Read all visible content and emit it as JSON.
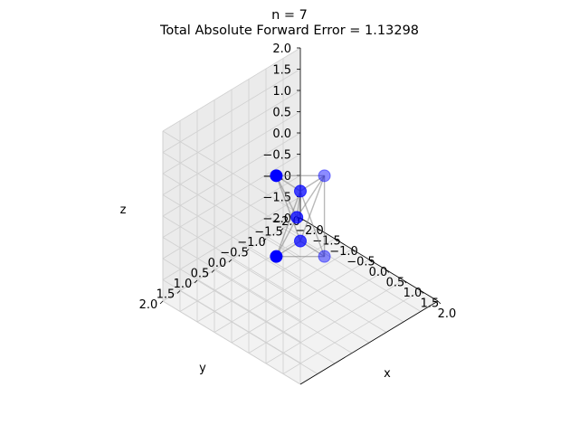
{
  "chart_data": {
    "type": "scatter3d",
    "title": "n = 7",
    "subtitle": "Total Absolute Forward Error = 1.13298",
    "xlabel": "x",
    "ylabel": "y",
    "zlabel": "z",
    "xlim": [
      -2.0,
      2.0
    ],
    "ylim": [
      -2.0,
      2.0
    ],
    "zlim": [
      -2.0,
      2.0
    ],
    "x_ticks": [
      "−2.0",
      "−1.5",
      "−1.0",
      "−0.5",
      "0.0",
      "0.5",
      "1.0",
      "1.5",
      "2.0"
    ],
    "y_ticks": [
      "−2.0",
      "−1.5",
      "−1.0",
      "−0.5",
      "0.0",
      "0.5",
      "1.0",
      "1.5",
      "2.0"
    ],
    "z_ticks": [
      "−2.0",
      "−1.5",
      "−1.0",
      "−0.5",
      "0.0",
      "0.5",
      "1.0",
      "1.5",
      "2.0"
    ],
    "grid": true,
    "point_color": "#0000ff",
    "edge_color": "#808080",
    "points": [
      {
        "x": -0.35,
        "y": 0.35,
        "z": 0.95
      },
      {
        "x": 0.35,
        "y": -0.35,
        "z": 0.95
      },
      {
        "x": -0.05,
        "y": 0.05,
        "z": -0.03
      },
      {
        "x": 0.6,
        "y": 0.6,
        "z": 0.0
      },
      {
        "x": -0.6,
        "y": -0.6,
        "z": 0.0
      },
      {
        "x": 0.35,
        "y": -0.35,
        "z": -0.95
      },
      {
        "x": -0.35,
        "y": 0.35,
        "z": -0.95
      }
    ],
    "edges": [
      [
        0,
        1
      ],
      [
        0,
        2
      ],
      [
        0,
        3
      ],
      [
        0,
        4
      ],
      [
        1,
        2
      ],
      [
        1,
        3
      ],
      [
        1,
        4
      ],
      [
        1,
        5
      ],
      [
        2,
        4
      ],
      [
        2,
        6
      ],
      [
        3,
        5
      ],
      [
        3,
        6
      ],
      [
        4,
        5
      ],
      [
        4,
        6
      ],
      [
        5,
        6
      ]
    ]
  }
}
